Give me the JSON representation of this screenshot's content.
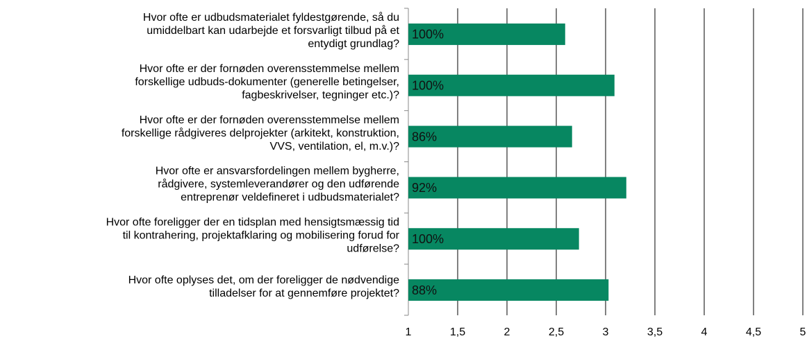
{
  "chart_data": {
    "type": "barh",
    "categories": [
      [
        "Hvor ofte er udbudsmaterialet fyldestgørende, så du",
        "umiddelbart kan udarbejde et forsvarligt tilbud på et",
        "entydigt grundlag?"
      ],
      [
        "Hvor ofte er der fornøden overensstemmelse mellem",
        "forskellige udbuds-dokumenter (generelle betingelser,",
        "fagbeskrivelser, tegninger etc.)?"
      ],
      [
        "Hvor ofte er der fornøden overensstemmelse mellem",
        "forskellige rådgiveres delprojekter (arkitekt, konstruktion,",
        "VVS, ventilation, el, m.v.)?"
      ],
      [
        "Hvor ofte er ansvarsfordelingen mellem bygherre,",
        "rådgivere, systemleverandører og den udførende",
        "entreprenør veldefineret i udbudsmaterialet?"
      ],
      [
        "Hvor ofte foreligger der en tidsplan med hensigtsmæssig tid",
        "til kontrahering, projektafklaring og mobilisering forud for",
        "udførelse?"
      ],
      [
        "Hvor ofte oplyses det, om der foreligger de nødvendige",
        "tilladelser for at gennemføre projektet?"
      ]
    ],
    "values": [
      2.59,
      3.09,
      2.66,
      3.21,
      2.73,
      3.03
    ],
    "annotations": [
      "100%",
      "100%",
      "86%",
      "92%",
      "100%",
      "88%"
    ],
    "color": "#078761",
    "xlim": [
      1,
      5
    ],
    "xticks": [
      1,
      {
        "value": 1.5,
        "label": "1,5"
      },
      2,
      {
        "value": 2.5,
        "label": "2,5"
      },
      3,
      {
        "value": 3.5,
        "label": "3,5"
      },
      4,
      {
        "value": 4.5,
        "label": "4,5"
      },
      5
    ],
    "grid": true
  }
}
